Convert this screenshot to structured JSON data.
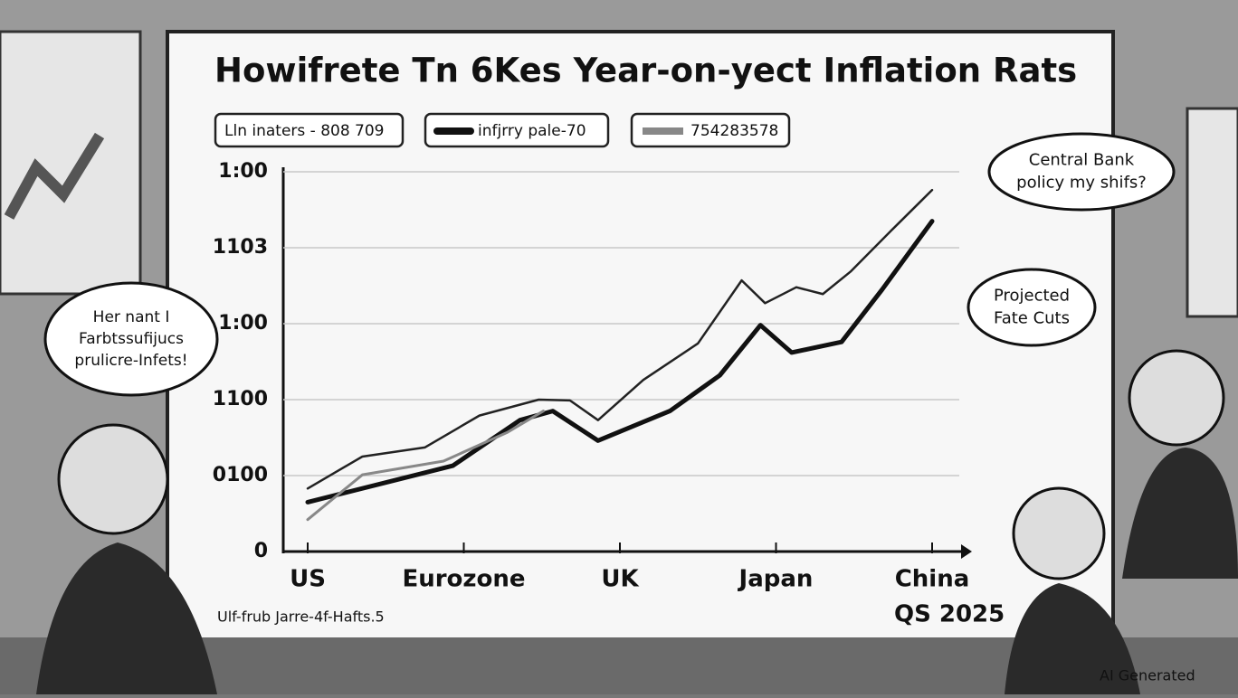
{
  "chart_data": {
    "type": "line",
    "title": "Howifrete Tn 6Kes Year-on-yect Inflation Rats",
    "categories": [
      "US",
      "Eurozone",
      "UK",
      "Japan",
      "China"
    ],
    "xlim": [
      0,
      4
    ],
    "ylim": [
      0,
      500
    ],
    "yticks": [
      0,
      {
        "value": 100,
        "label": "0100"
      },
      {
        "value": 200,
        "label": "1100"
      },
      {
        "value": 300,
        "label": "1:00"
      },
      {
        "value": 400,
        "label": "1103"
      },
      {
        "value": 500,
        "label": "1:00"
      }
    ],
    "grid": true,
    "series": [
      {
        "name": "Lln inaters - 808 709",
        "color": "#222222",
        "x": [
          0,
          0.35,
          0.75,
          1.1,
          1.48,
          1.68,
          1.86,
          2.15,
          2.5,
          2.78,
          2.93,
          3.13,
          3.3,
          3.48,
          3.74,
          4
        ],
        "values": [
          83,
          125,
          137,
          179,
          200,
          199,
          173,
          226,
          274,
          357,
          327,
          348,
          339,
          369,
          423,
          476
        ]
      },
      {
        "name": "infjrry pale-70",
        "color": "#111111",
        "x": [
          0,
          0.93,
          1.36,
          1.57,
          1.86,
          2.32,
          2.64,
          2.9,
          3.1,
          3.42,
          3.68,
          4
        ],
        "values": [
          65,
          113,
          173,
          185,
          146,
          185,
          232,
          298,
          262,
          276,
          345,
          435
        ]
      },
      {
        "name": "754283578",
        "color": "#888888",
        "x": [
          0,
          0.35,
          0.87,
          1.28,
          1.51
        ],
        "values": [
          42,
          101,
          119,
          157,
          185
        ]
      }
    ],
    "footnote": "Ulf-frub Jarre-4f-Hafts.5",
    "period": "QS 2025",
    "annotations": [
      {
        "lines": [
          "Her nant I",
          "Farbtssufijucs",
          "prulicre-Infets!"
        ]
      },
      {
        "lines": [
          "Central Bank",
          "policy my shifs?"
        ]
      },
      {
        "lines": [
          "Projected",
          "Fate Cuts"
        ]
      }
    ],
    "watermark": "AI Generated"
  }
}
